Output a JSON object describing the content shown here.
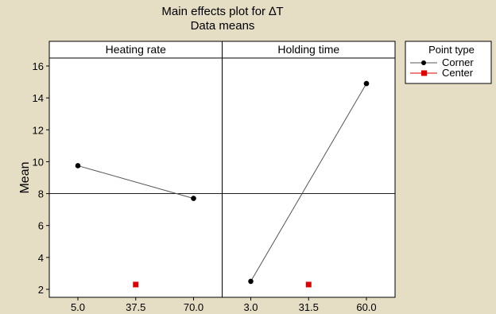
{
  "chart_data": {
    "type": "line",
    "title": "Main effects plot for ∆T",
    "subtitle": "Data means",
    "ylabel": "Mean",
    "ylim": [
      1.5,
      16.5
    ],
    "yticks": [
      2,
      4,
      6,
      8,
      10,
      12,
      14,
      16
    ],
    "reference_line": 8,
    "panels": [
      {
        "label": "Heating rate",
        "categories": [
          "5.0",
          "37.5",
          "70.0"
        ],
        "series": [
          {
            "name": "Corner",
            "values": [
              9.75,
              null,
              7.7
            ]
          },
          {
            "name": "Center",
            "values": [
              null,
              2.3,
              null
            ]
          }
        ]
      },
      {
        "label": "Holding time",
        "categories": [
          "3.0",
          "31.5",
          "60.0"
        ],
        "series": [
          {
            "name": "Corner",
            "values": [
              2.5,
              null,
              14.9
            ]
          },
          {
            "name": "Center",
            "values": [
              null,
              2.3,
              null
            ]
          }
        ]
      }
    ],
    "legend": {
      "title": "Point type",
      "entries": [
        {
          "name": "Corner",
          "color": "#000000",
          "marker": "circle"
        },
        {
          "name": "Center",
          "color": "#e00000",
          "marker": "square"
        }
      ],
      "placement": "top-right"
    }
  }
}
